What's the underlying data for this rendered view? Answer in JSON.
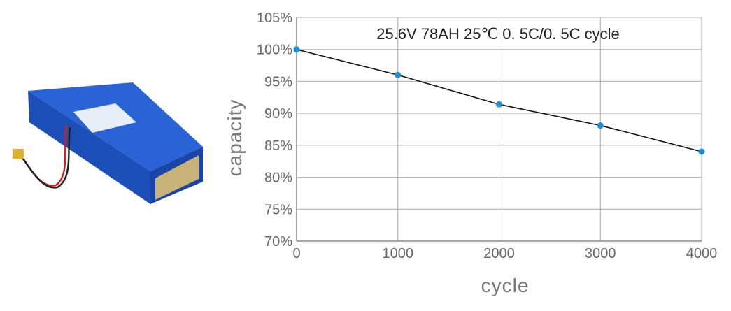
{
  "chart_data": {
    "type": "line",
    "title": "25.6V 78AH 25℃  0. 5C/0. 5C  cycle",
    "xlabel": "cycle",
    "ylabel": "capacity",
    "x": [
      0,
      1000,
      2000,
      3000,
      4000
    ],
    "series": [
      {
        "name": "capacity",
        "values": [
          100,
          96.0,
          91.4,
          88.1,
          84.0
        ]
      }
    ],
    "xlim": [
      0,
      4000
    ],
    "ylim": [
      70,
      105
    ],
    "xticks": [
      "0",
      "1000",
      "2000",
      "3000",
      "4000"
    ],
    "yticks": [
      "70%",
      "75%",
      "80%",
      "85%",
      "90%",
      "95%",
      "100%",
      "105%"
    ],
    "grid": true,
    "legend": "none",
    "colors": {
      "line": "#111111",
      "marker": "#1a8fd8",
      "grid": "#aaaaaa"
    }
  },
  "image": {
    "subject": "battery-pack"
  }
}
